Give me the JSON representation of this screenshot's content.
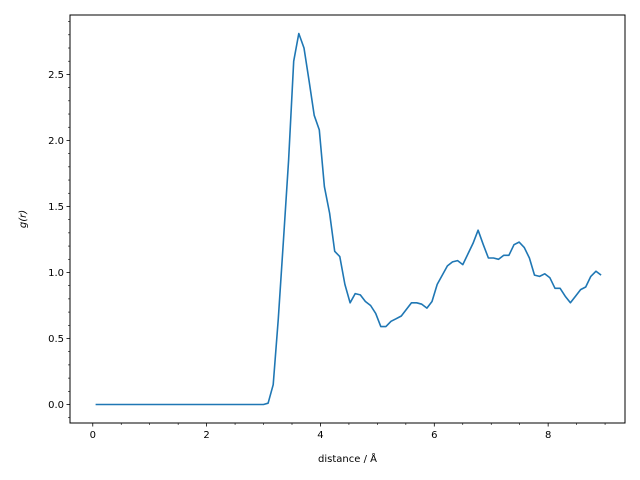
{
  "chart_data": {
    "type": "line",
    "title": "",
    "xlabel": "distance / Å",
    "ylabel": "g(r)",
    "xlim": [
      -0.4,
      9.35
    ],
    "ylim": [
      -0.14,
      2.95
    ],
    "grid": false,
    "legend": "none",
    "x_ticks": [
      0,
      2,
      4,
      6,
      8
    ],
    "x_tick_labels": [
      "0",
      "2",
      "4",
      "6",
      "8"
    ],
    "y_ticks": [
      0.0,
      0.5,
      1.0,
      1.5,
      2.0,
      2.5
    ],
    "y_tick_labels": [
      "0.0",
      "0.5",
      "1.0",
      "1.5",
      "2.0",
      "2.5"
    ],
    "x_minor_step": 0.5,
    "y_minor_step": 0.1,
    "line_color": "#1f77b4",
    "series": [
      {
        "name": "",
        "x": [
          0.05,
          3.0,
          3.08,
          3.17,
          3.26,
          3.35,
          3.44,
          3.53,
          3.62,
          3.71,
          3.8,
          3.89,
          3.98,
          4.07,
          4.16,
          4.25,
          4.34,
          4.43,
          4.52,
          4.61,
          4.7,
          4.79,
          4.88,
          4.97,
          5.06,
          5.15,
          5.24,
          5.33,
          5.42,
          5.51,
          5.6,
          5.69,
          5.78,
          5.87,
          5.96,
          6.05,
          6.14,
          6.23,
          6.32,
          6.41,
          6.5,
          6.59,
          6.68,
          6.77,
          6.86,
          6.95,
          7.04,
          7.13,
          7.22,
          7.31,
          7.4,
          7.49,
          7.58,
          7.67,
          7.76,
          7.85,
          7.94,
          8.03,
          8.12,
          8.21,
          8.3,
          8.39,
          8.48,
          8.57,
          8.66,
          8.75,
          8.84,
          8.93
        ],
        "y": [
          0.0,
          0.0,
          0.01,
          0.15,
          0.65,
          1.25,
          1.85,
          2.6,
          2.81,
          2.7,
          2.45,
          2.19,
          2.08,
          1.65,
          1.45,
          1.16,
          1.12,
          0.91,
          0.77,
          0.84,
          0.83,
          0.78,
          0.75,
          0.69,
          0.59,
          0.59,
          0.63,
          0.65,
          0.67,
          0.72,
          0.77,
          0.77,
          0.76,
          0.73,
          0.78,
          0.91,
          0.98,
          1.05,
          1.08,
          1.09,
          1.06,
          1.14,
          1.22,
          1.32,
          1.21,
          1.11,
          1.11,
          1.1,
          1.13,
          1.13,
          1.21,
          1.23,
          1.19,
          1.11,
          0.98,
          0.97,
          0.99,
          0.96,
          0.88,
          0.88,
          0.82,
          0.77,
          0.82,
          0.87,
          0.89,
          0.97,
          1.01,
          0.98
        ]
      }
    ]
  }
}
